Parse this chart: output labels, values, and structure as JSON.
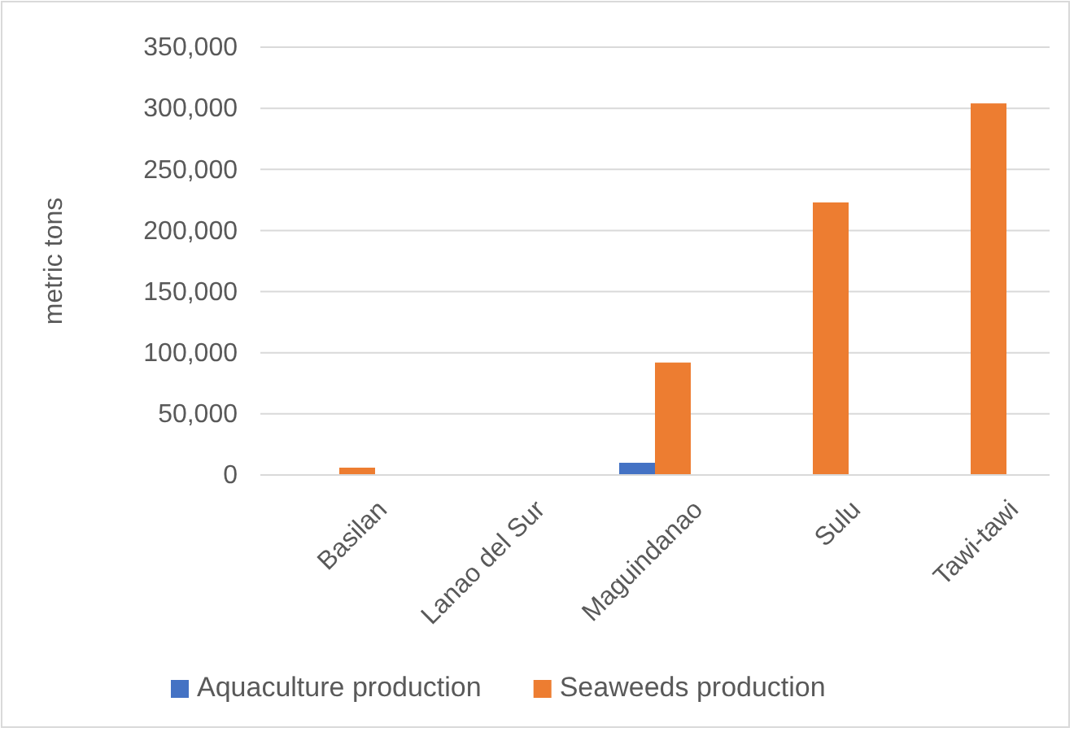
{
  "chart_data": {
    "type": "bar",
    "ylabel": "metric tons",
    "categories": [
      "Basilan",
      "Lanao del Sur",
      "Maguindanao",
      "Sulu",
      "Tawi-tawi"
    ],
    "series": [
      {
        "name": "Aquaculture production",
        "color": "#4472c4",
        "values": [
          null,
          0,
          10000,
          null,
          null
        ]
      },
      {
        "name": "Seaweeds production",
        "color": "#ed7d31",
        "values": [
          6000,
          0,
          92000,
          223000,
          304000
        ]
      }
    ],
    "ylim": [
      0,
      350000
    ],
    "yticks": [
      {
        "value": 0,
        "label": "0"
      },
      {
        "value": 50000,
        "label": "50,000"
      },
      {
        "value": 100000,
        "label": "100,000"
      },
      {
        "value": 150000,
        "label": "150,000"
      },
      {
        "value": 200000,
        "label": "200,000"
      },
      {
        "value": 250000,
        "label": "250,000"
      },
      {
        "value": 300000,
        "label": "300,000"
      },
      {
        "value": 350000,
        "label": "350,000"
      }
    ],
    "grid": "y",
    "legend": "bottom"
  }
}
